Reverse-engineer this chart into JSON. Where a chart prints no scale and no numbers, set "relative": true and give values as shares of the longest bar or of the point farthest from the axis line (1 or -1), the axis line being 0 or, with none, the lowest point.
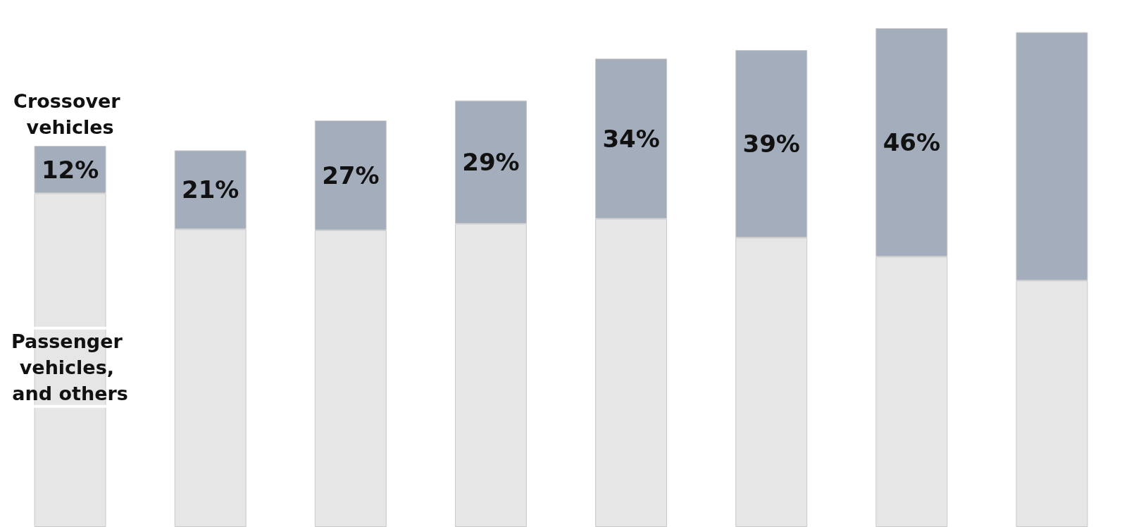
{
  "chart_data": {
    "type": "bar",
    "stacked": true,
    "relative": true,
    "categories": [
      null,
      null,
      null,
      null,
      null,
      null,
      null,
      null
    ],
    "series": [
      {
        "name": "Passenger vehicles, and others",
        "color": "#e6e6e6",
        "values": [
          0.669,
          0.597,
          0.595,
          0.608,
          0.618,
          0.58,
          0.542,
          0.494
        ]
      },
      {
        "name": "Crossover vehicles",
        "color": "#a3adbb",
        "values": [
          0.095,
          0.158,
          0.22,
          0.247,
          0.321,
          0.376,
          0.458,
          0.498
        ]
      }
    ],
    "annotations": [
      "12%",
      "21%",
      "27%",
      "29%",
      "34%",
      "39%",
      "46%"
    ],
    "tick_labels": false
  }
}
